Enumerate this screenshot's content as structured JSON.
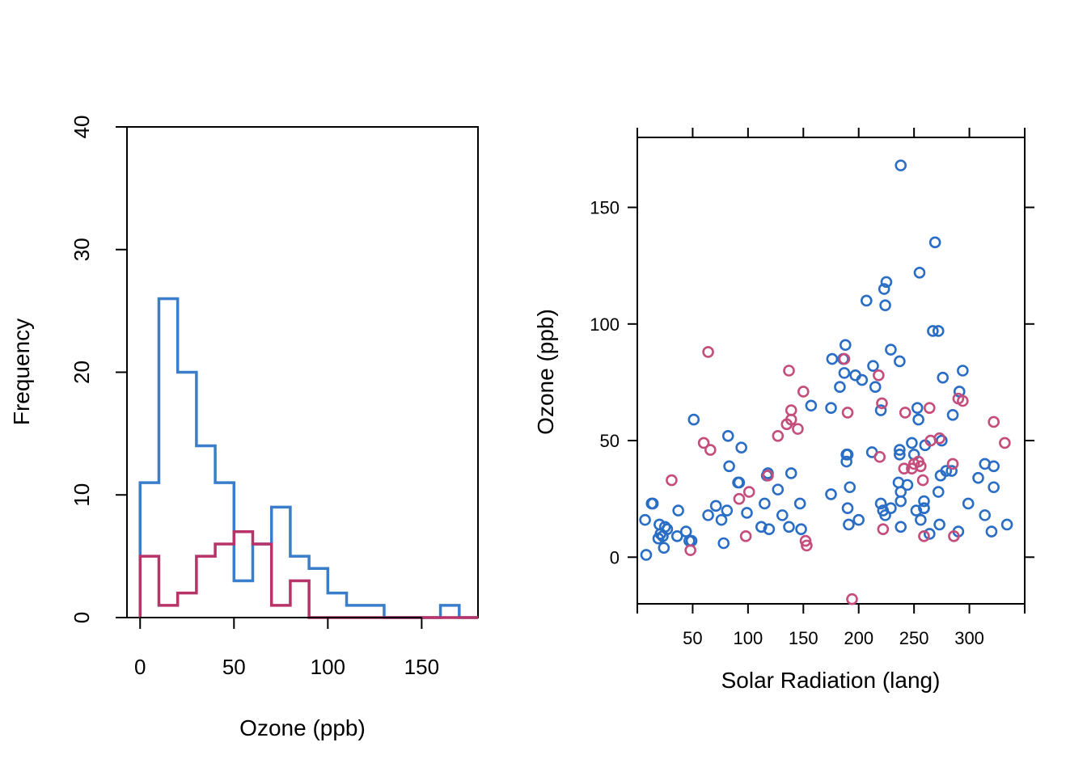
{
  "chart_data": [
    {
      "type": "histogram",
      "xlabel": "Ozone (ppb)",
      "ylabel": "Frequency",
      "xlim": [
        -7,
        180
      ],
      "ylim": [
        0,
        40
      ],
      "x_ticks": [
        0,
        50,
        100,
        150
      ],
      "y_ticks": [
        0,
        10,
        20,
        30,
        40
      ],
      "bin_edges": [
        0,
        10,
        20,
        30,
        40,
        50,
        60,
        70,
        80,
        90,
        100,
        110,
        120,
        130,
        140,
        150,
        160,
        170,
        180
      ],
      "series": [
        {
          "color": "#3a7dcb",
          "counts": [
            11,
            26,
            20,
            14,
            11,
            3,
            6,
            9,
            5,
            4,
            2,
            1,
            1,
            0,
            0,
            0,
            1,
            0
          ]
        },
        {
          "color": "#b8336a",
          "counts": [
            5,
            1,
            2,
            5,
            6,
            7,
            6,
            1,
            3,
            0,
            0,
            0,
            0,
            0,
            0,
            0,
            0,
            0
          ]
        }
      ]
    },
    {
      "type": "scatter",
      "xlabel": "Solar Radiation (lang)",
      "ylabel": "Ozone (ppb)",
      "xlim": [
        0,
        350
      ],
      "ylim": [
        -20,
        180
      ],
      "x_ticks": [
        50,
        100,
        150,
        200,
        250,
        300
      ],
      "y_ticks": [
        0,
        50,
        100,
        150
      ],
      "series": [
        {
          "color": "#2a6dc4",
          "points": [
            [
              7,
              16
            ],
            [
              8,
              1
            ],
            [
              13,
              23
            ],
            [
              14,
              23
            ],
            [
              19,
              8
            ],
            [
              20,
              14
            ],
            [
              21,
              10
            ],
            [
              23,
              9
            ],
            [
              24,
              4
            ],
            [
              25,
              13
            ],
            [
              27,
              12
            ],
            [
              36,
              9
            ],
            [
              37,
              20
            ],
            [
              44,
              11
            ],
            [
              47,
              7
            ],
            [
              49,
              7
            ],
            [
              51,
              59
            ],
            [
              64,
              18
            ],
            [
              71,
              22
            ],
            [
              76,
              16
            ],
            [
              78,
              6
            ],
            [
              81,
              20
            ],
            [
              82,
              52
            ],
            [
              83,
              39
            ],
            [
              91,
              32
            ],
            [
              92,
              32
            ],
            [
              94,
              47
            ],
            [
              99,
              19
            ],
            [
              112,
              13
            ],
            [
              115,
              23
            ],
            [
              117,
              35
            ],
            [
              118,
              36
            ],
            [
              119,
              12
            ],
            [
              127,
              29
            ],
            [
              131,
              18
            ],
            [
              137,
              13
            ],
            [
              139,
              36
            ],
            [
              147,
              23
            ],
            [
              148,
              12
            ],
            [
              157,
              65
            ],
            [
              175,
              64
            ],
            [
              175,
              27
            ],
            [
              176,
              85
            ],
            [
              183,
              73
            ],
            [
              186,
              85
            ],
            [
              187,
              79
            ],
            [
              188,
              91
            ],
            [
              189,
              41
            ],
            [
              189,
              44
            ],
            [
              190,
              44
            ],
            [
              190,
              21
            ],
            [
              191,
              14
            ],
            [
              192,
              30
            ],
            [
              197,
              78
            ],
            [
              200,
              16
            ],
            [
              203,
              76
            ],
            [
              207,
              110
            ],
            [
              212,
              45
            ],
            [
              213,
              82
            ],
            [
              215,
              73
            ],
            [
              220,
              23
            ],
            [
              220,
              63
            ],
            [
              222,
              20
            ],
            [
              223,
              115
            ],
            [
              224,
              108
            ],
            [
              224,
              18
            ],
            [
              225,
              118
            ],
            [
              229,
              21
            ],
            [
              229,
              89
            ],
            [
              236,
              32
            ],
            [
              237,
              84
            ],
            [
              237,
              44
            ],
            [
              237,
              46
            ],
            [
              238,
              28
            ],
            [
              238,
              24
            ],
            [
              238,
              13
            ],
            [
              238,
              168
            ],
            [
              244,
              31
            ],
            [
              248,
              49
            ],
            [
              250,
              44
            ],
            [
              252,
              20
            ],
            [
              253,
              64
            ],
            [
              254,
              59
            ],
            [
              255,
              122
            ],
            [
              256,
              16
            ],
            [
              259,
              21
            ],
            [
              259,
              24
            ],
            [
              259,
              21
            ],
            [
              260,
              48
            ],
            [
              264,
              10
            ],
            [
              267,
              97
            ],
            [
              269,
              135
            ],
            [
              272,
              97
            ],
            [
              272,
              28
            ],
            [
              273,
              14
            ],
            [
              274,
              35
            ],
            [
              275,
              50
            ],
            [
              276,
              77
            ],
            [
              279,
              37
            ],
            [
              284,
              37
            ],
            [
              285,
              61
            ],
            [
              290,
              11
            ],
            [
              291,
              71
            ],
            [
              294,
              80
            ],
            [
              299,
              23
            ],
            [
              308,
              34
            ],
            [
              314,
              18
            ],
            [
              314,
              40
            ],
            [
              320,
              11
            ],
            [
              322,
              39
            ],
            [
              322,
              30
            ],
            [
              334,
              14
            ]
          ]
        },
        {
          "color": "#c44d7b",
          "points": [
            [
              31,
              33
            ],
            [
              48,
              3
            ],
            [
              60,
              49
            ],
            [
              64,
              88
            ],
            [
              66,
              46
            ],
            [
              92,
              25
            ],
            [
              98,
              9
            ],
            [
              101,
              28
            ],
            [
              118,
              35
            ],
            [
              127,
              52
            ],
            [
              135,
              57
            ],
            [
              137,
              80
            ],
            [
              139,
              59
            ],
            [
              139,
              63
            ],
            [
              145,
              55
            ],
            [
              150,
              71
            ],
            [
              152,
              7
            ],
            [
              153,
              5
            ],
            [
              187,
              85
            ],
            [
              190,
              62
            ],
            [
              194,
              -18
            ],
            [
              218,
              78
            ],
            [
              219,
              43
            ],
            [
              221,
              66
            ],
            [
              222,
              12
            ],
            [
              241,
              38
            ],
            [
              242,
              62
            ],
            [
              248,
              38
            ],
            [
              250,
              40
            ],
            [
              254,
              41
            ],
            [
              256,
              39
            ],
            [
              258,
              33
            ],
            [
              259,
              9
            ],
            [
              264,
              64
            ],
            [
              265,
              50
            ],
            [
              273,
              51
            ],
            [
              285,
              40
            ],
            [
              286,
              9
            ],
            [
              290,
              68
            ],
            [
              294,
              67
            ],
            [
              322,
              58
            ],
            [
              332,
              49
            ]
          ]
        }
      ]
    }
  ]
}
